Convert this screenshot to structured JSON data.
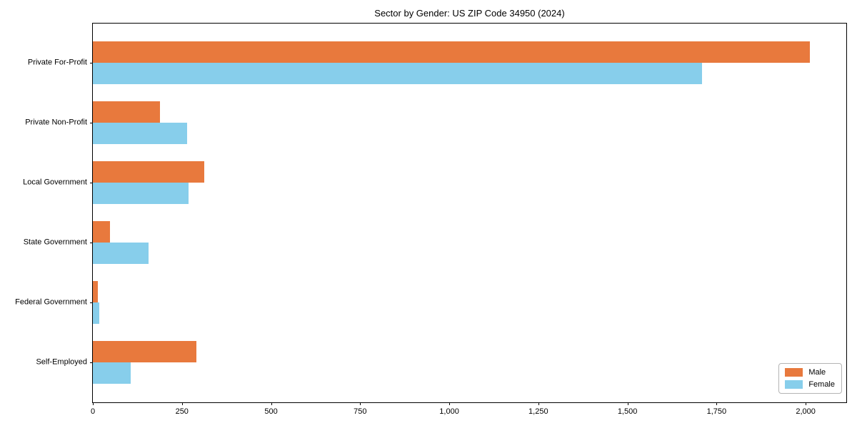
{
  "chart_data": {
    "type": "bar",
    "orientation": "horizontal",
    "title": "Sector by Gender: US ZIP Code 34950 (2024)",
    "xlabel": "",
    "ylabel": "",
    "categories": [
      "Private For-Profit",
      "Private Non-Profit",
      "Local Government",
      "State Government",
      "Federal Government",
      "Self-Employed"
    ],
    "series": [
      {
        "name": "Male",
        "color": "#E8793D",
        "values": [
          2011,
          188,
          312,
          48,
          14,
          290
        ]
      },
      {
        "name": "Female",
        "color": "#87CEEB",
        "values": [
          1710,
          265,
          268,
          157,
          18,
          106
        ]
      }
    ],
    "xlim": [
      0,
      2114
    ],
    "xticks": [
      0,
      250,
      500,
      750,
      1000,
      1250,
      1500,
      1750,
      2000
    ],
    "xtick_labels": [
      "0",
      "250",
      "500",
      "750",
      "1,000",
      "1,250",
      "1,500",
      "1,750",
      "2,000"
    ],
    "legend_position": "lower right",
    "grid": false,
    "spine_color": "#000000"
  }
}
